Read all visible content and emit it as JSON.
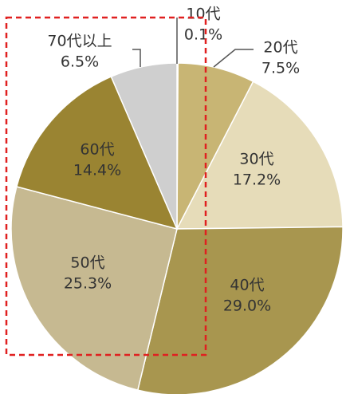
{
  "chart_data": {
    "type": "pie",
    "categories": [
      "10代",
      "20代",
      "30代",
      "40代",
      "50代",
      "60代",
      "70代以上"
    ],
    "values": [
      0.1,
      7.5,
      17.2,
      29.0,
      25.3,
      14.4,
      6.5
    ],
    "value_labels": [
      "0.1%",
      "7.5%",
      "17.2%",
      "29.0%",
      "25.3%",
      "14.4%",
      "6.5%"
    ],
    "colors": [
      "#8a7a3a",
      "#c8b574",
      "#e6dcb9",
      "#a8964f",
      "#c6b991",
      "#9a8432",
      "#cfcfcf"
    ]
  }
}
